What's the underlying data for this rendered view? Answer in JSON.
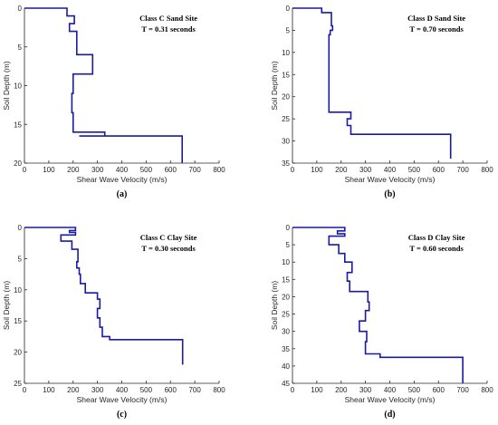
{
  "style": {
    "line_color": "#1a1aa6",
    "axis_color": "#262626",
    "text_color": "#262626",
    "label_color": "#000000"
  },
  "chart_data": [
    {
      "type": "line",
      "panel_label": "(a)",
      "annotation": [
        "Class C Sand Site",
        "T = 0.31 seconds"
      ],
      "xlabel": "Shear Wave Velocity (m/s)",
      "ylabel": "Soil Depth (m)",
      "xlim": [
        0,
        800
      ],
      "ylim": [
        0,
        20
      ],
      "y_reversed": true,
      "xticks": [
        0,
        100,
        200,
        300,
        400,
        500,
        600,
        700,
        800
      ],
      "yticks": [
        0,
        5,
        10,
        15,
        20
      ],
      "series": [
        {
          "x": [
            0,
            175,
            175,
            205,
            205,
            185,
            185,
            215,
            215,
            280,
            280,
            200,
            200,
            195,
            195,
            200,
            200,
            330,
            330,
            225,
            225,
            648,
            648
          ],
          "y": [
            0,
            0,
            1,
            1,
            2,
            2,
            3,
            3,
            6,
            6,
            8.5,
            8.5,
            11,
            11,
            13.5,
            13.5,
            16,
            16,
            16.5,
            16.5,
            16.5,
            16.5,
            20
          ]
        }
      ]
    },
    {
      "type": "line",
      "panel_label": "(b)",
      "annotation": [
        "Class D Sand Site",
        "T = 0.70 seconds"
      ],
      "xlabel": "Shear Wave Velocity (m/s)",
      "ylabel": "Soil Depth (m)",
      "xlim": [
        0,
        800
      ],
      "ylim": [
        0,
        35
      ],
      "y_reversed": true,
      "xticks": [
        0,
        100,
        200,
        300,
        400,
        500,
        600,
        700,
        800
      ],
      "yticks": [
        0,
        5,
        10,
        15,
        20,
        25,
        30,
        35
      ],
      "series": [
        {
          "x": [
            0,
            120,
            120,
            160,
            160,
            165,
            165,
            155,
            155,
            150,
            150,
            240,
            240,
            225,
            225,
            240,
            240,
            650,
            650
          ],
          "y": [
            0,
            0,
            1,
            1,
            4,
            4,
            5,
            5,
            6,
            6,
            23.5,
            23.5,
            25,
            25,
            26.5,
            26.5,
            28.5,
            28.5,
            34
          ]
        }
      ]
    },
    {
      "type": "line",
      "panel_label": "(c)",
      "annotation": [
        "Class C Clay Site",
        "T = 0.30 seconds"
      ],
      "xlabel": "Shear Wave Velocity (m/s)",
      "ylabel": "Soil Depth (m)",
      "xlim": [
        0,
        800
      ],
      "ylim": [
        0,
        25
      ],
      "y_reversed": true,
      "xticks": [
        0,
        100,
        200,
        300,
        400,
        500,
        600,
        700,
        800
      ],
      "yticks": [
        0,
        5,
        10,
        15,
        20,
        25
      ],
      "series": [
        {
          "x": [
            0,
            210,
            210,
            185,
            185,
            210,
            210,
            150,
            150,
            195,
            195,
            220,
            220,
            215,
            215,
            225,
            225,
            230,
            230,
            250,
            250,
            300,
            300,
            310,
            310,
            300,
            300,
            310,
            310,
            320,
            320,
            350,
            350,
            650,
            650
          ],
          "y": [
            0,
            0,
            0.5,
            0.5,
            0.8,
            0.8,
            1.2,
            1.2,
            2.2,
            2.2,
            3.5,
            3.5,
            5.5,
            5.5,
            6.5,
            6.5,
            7.5,
            7.5,
            9,
            9,
            10.5,
            10.5,
            11.5,
            11.5,
            13,
            13,
            14.5,
            14.5,
            16,
            16,
            17.5,
            17.5,
            18,
            18,
            22
          ]
        }
      ]
    },
    {
      "type": "line",
      "panel_label": "(d)",
      "annotation": [
        "Class D Clay Site",
        "T = 0.60 seconds"
      ],
      "xlabel": "Shear Wave Velocity (m/s)",
      "ylabel": "Soil Depth (m)",
      "xlim": [
        0,
        800
      ],
      "ylim": [
        0,
        45
      ],
      "y_reversed": true,
      "xticks": [
        0,
        100,
        200,
        300,
        400,
        500,
        600,
        700,
        800
      ],
      "yticks": [
        0,
        5,
        10,
        15,
        20,
        25,
        30,
        35,
        40,
        45
      ],
      "series": [
        {
          "x": [
            0,
            215,
            215,
            185,
            185,
            215,
            215,
            150,
            150,
            190,
            190,
            215,
            215,
            245,
            245,
            225,
            225,
            235,
            235,
            310,
            310,
            315,
            315,
            300,
            300,
            275,
            275,
            305,
            305,
            300,
            300,
            360,
            360,
            700,
            700
          ],
          "y": [
            0,
            0,
            1,
            1,
            1.8,
            1.8,
            2.5,
            2.5,
            5,
            5,
            7.5,
            7.5,
            10,
            10,
            13,
            13,
            15.5,
            15.5,
            18.5,
            18.5,
            21.5,
            21.5,
            24,
            24,
            27,
            27,
            30,
            30,
            33,
            33,
            36.5,
            36.5,
            37.5,
            37.5,
            45
          ]
        }
      ]
    }
  ]
}
